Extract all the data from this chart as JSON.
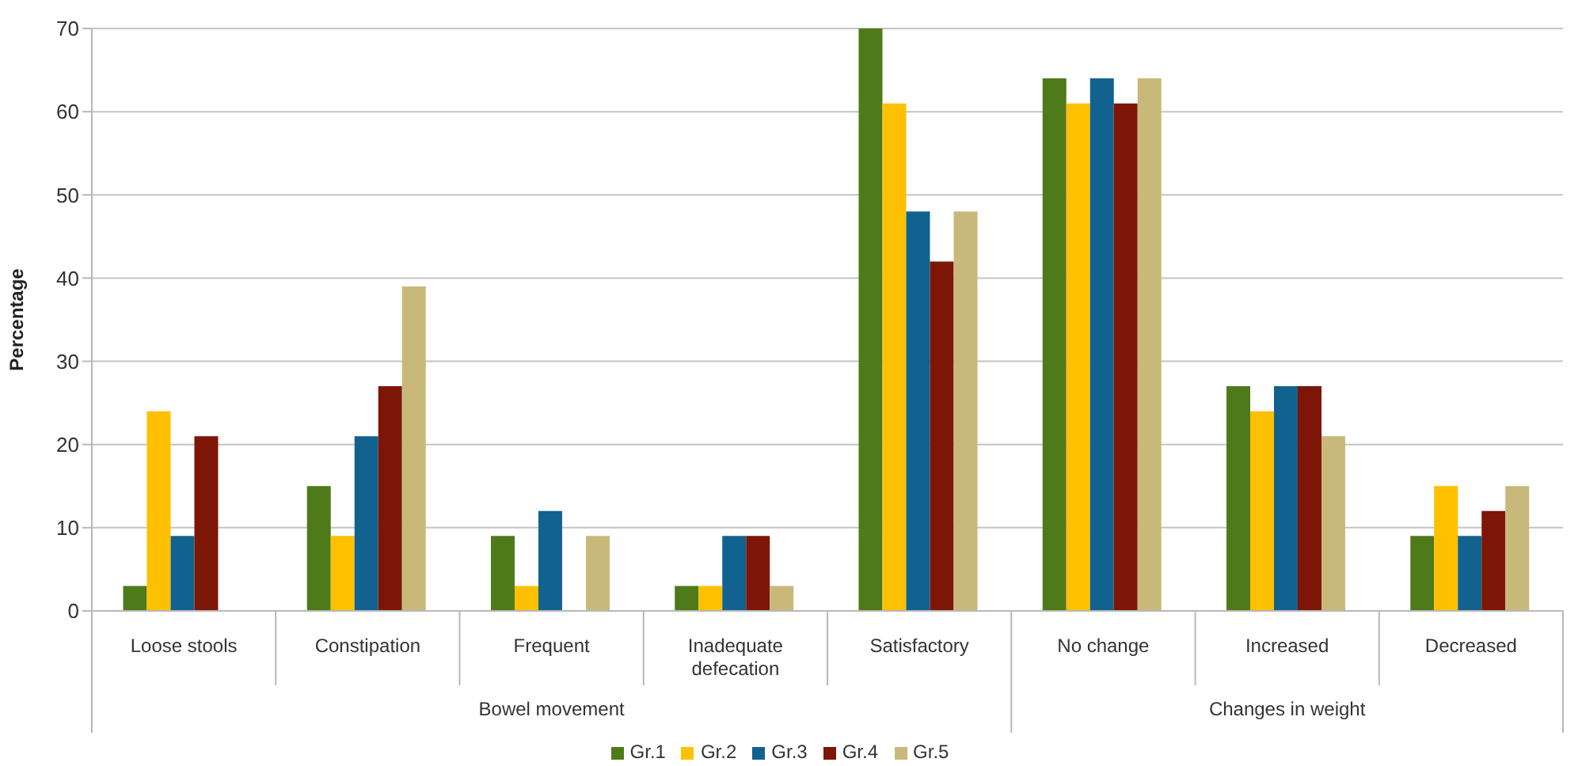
{
  "chart_data": {
    "type": "bar",
    "ylabel": "Percentage",
    "categories": [
      "Loose stools",
      "Constipation",
      "Frequent",
      "Inadequate defecation",
      "Satisfactory",
      "No change",
      "Increased",
      "Decreased"
    ],
    "series": [
      {
        "name": "Gr.1",
        "color": "#4e7a1a",
        "values": [
          3,
          15,
          9,
          3,
          70,
          64,
          27,
          9
        ]
      },
      {
        "name": "Gr.2",
        "color": "#ffc000",
        "values": [
          24,
          9,
          3,
          3,
          61,
          61,
          24,
          15
        ]
      },
      {
        "name": "Gr.3",
        "color": "#12628f",
        "values": [
          9,
          21,
          12,
          9,
          48,
          64,
          27,
          9
        ]
      },
      {
        "name": "Gr.4",
        "color": "#7d1607",
        "values": [
          21,
          27,
          0,
          9,
          42,
          61,
          27,
          12
        ]
      },
      {
        "name": "Gr.5",
        "color": "#c8b97a",
        "values": [
          0,
          39,
          9,
          3,
          48,
          64,
          21,
          15
        ]
      }
    ],
    "ylim": [
      0,
      70
    ],
    "yticks": [
      0,
      10,
      20,
      30,
      40,
      50,
      60,
      70
    ],
    "grid": "y",
    "legend": "bottom",
    "annotations": [
      "Bowel movement",
      "Changes in weight"
    ]
  }
}
